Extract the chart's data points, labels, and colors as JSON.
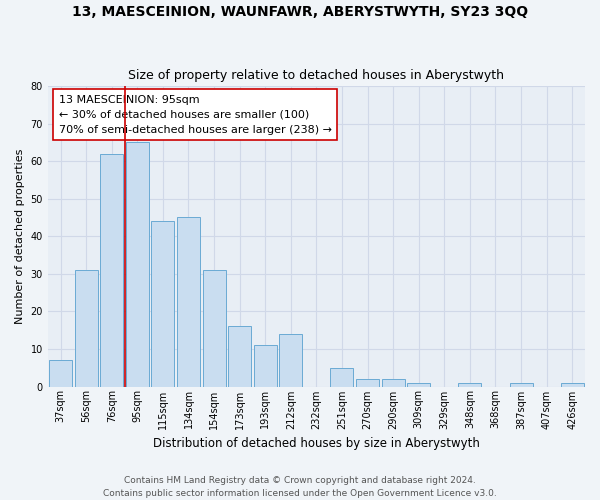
{
  "title": "13, MAESCEINION, WAUNFAWR, ABERYSTWYTH, SY23 3QQ",
  "subtitle": "Size of property relative to detached houses in Aberystwyth",
  "xlabel": "Distribution of detached houses by size in Aberystwyth",
  "ylabel": "Number of detached properties",
  "categories": [
    "37sqm",
    "56sqm",
    "76sqm",
    "95sqm",
    "115sqm",
    "134sqm",
    "154sqm",
    "173sqm",
    "193sqm",
    "212sqm",
    "232sqm",
    "251sqm",
    "270sqm",
    "290sqm",
    "309sqm",
    "329sqm",
    "348sqm",
    "368sqm",
    "387sqm",
    "407sqm",
    "426sqm"
  ],
  "values": [
    7,
    31,
    62,
    65,
    44,
    45,
    31,
    16,
    11,
    14,
    0,
    5,
    2,
    2,
    1,
    0,
    1,
    0,
    1,
    0,
    1
  ],
  "bar_color": "#c9ddf0",
  "bar_edge_color": "#6aaad4",
  "vline_x": 2.5,
  "vline_color": "#cc0000",
  "annotation_line1": "13 MAESCEINION: 95sqm",
  "annotation_line2": "← 30% of detached houses are smaller (100)",
  "annotation_line3": "70% of semi-detached houses are larger (238) →",
  "annotation_box_color": "#ffffff",
  "annotation_box_edge": "#cc0000",
  "ylim": [
    0,
    80
  ],
  "yticks": [
    0,
    10,
    20,
    30,
    40,
    50,
    60,
    70,
    80
  ],
  "grid_color": "#d0d8e8",
  "bg_color": "#e8eef5",
  "fig_bg_color": "#f0f4f8",
  "footer": "Contains HM Land Registry data © Crown copyright and database right 2024.\nContains public sector information licensed under the Open Government Licence v3.0.",
  "title_fontsize": 10,
  "subtitle_fontsize": 9,
  "xlabel_fontsize": 8.5,
  "ylabel_fontsize": 8,
  "tick_fontsize": 7,
  "annotation_fontsize": 8,
  "footer_fontsize": 6.5
}
